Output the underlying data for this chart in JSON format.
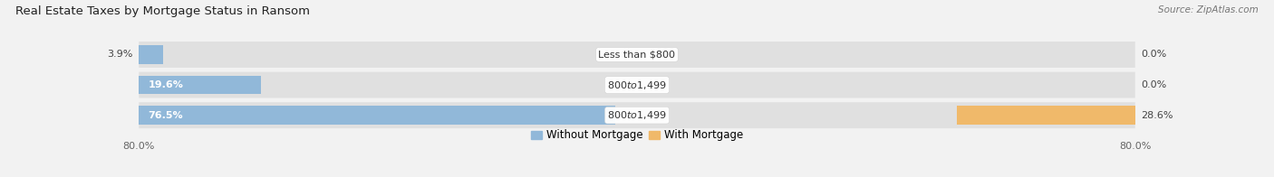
{
  "title": "Real Estate Taxes by Mortgage Status in Ransom",
  "source": "Source: ZipAtlas.com",
  "rows": [
    {
      "label": "Less than $800",
      "without_mortgage": 3.9,
      "with_mortgage": 0.0
    },
    {
      "label": "$800 to $1,499",
      "without_mortgage": 19.6,
      "with_mortgage": 0.0
    },
    {
      "label": "$800 to $1,499",
      "without_mortgage": 76.5,
      "with_mortgage": 28.6
    }
  ],
  "xlim": 80.0,
  "color_without": "#91b8d9",
  "color_with": "#f0b96a",
  "bar_height": 0.62,
  "label_fontsize": 8.0,
  "title_fontsize": 9.5,
  "source_fontsize": 7.5,
  "axis_label_fontsize": 8.0,
  "legend_fontsize": 8.5,
  "bg_color": "#f2f2f2",
  "bar_bg_color": "#e0e0e0",
  "axis_tick_color": "#666666",
  "text_color_on_bar": "#ffffff",
  "text_color_outside": "#444444"
}
